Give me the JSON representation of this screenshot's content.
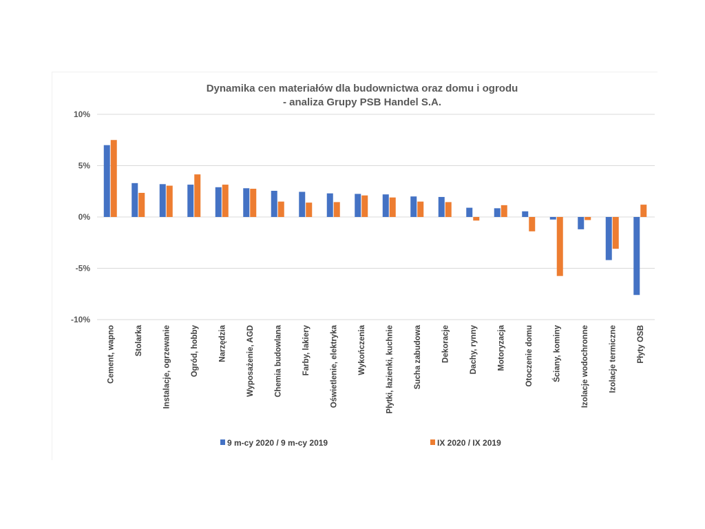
{
  "chart_data": {
    "type": "bar",
    "title": [
      "Dynamika cen materiałów dla budownictwa oraz domu i ogrodu",
      "- analiza Grupy PSB Handel S.A."
    ],
    "xlabel": "",
    "ylabel": "",
    "ylim": [
      -10,
      10
    ],
    "yticks": [
      10,
      5,
      0,
      -5,
      -10
    ],
    "ytick_labels": [
      "10%",
      "5%",
      "0%",
      "-5%",
      "-10%"
    ],
    "grid": true,
    "legend_position": "bottom",
    "categories": [
      "Cement, wapno",
      "Stolarka",
      "Instalacje, ogrzewanie",
      "Ogród, hobby",
      "Narzędzia",
      "Wyposażenie, AGD",
      "Chemia budowlana",
      "Farby, lakiery",
      "Oświetlenie, elektryka",
      "Wykończenia",
      "Płytki, łazienki, kuchnie",
      "Sucha zabudowa",
      "Dekoracje",
      "Dachy, rynny",
      "Motoryzacja",
      "Otoczenie domu",
      "Ściany, kominy",
      "Izolacje wodochronne",
      "Izolacje termiczne",
      "Płyty OSB"
    ],
    "series": [
      {
        "name": "9 m-cy 2020 / 9 m-cy 2019",
        "color": "#4472C4",
        "values": [
          7.0,
          3.3,
          3.2,
          3.15,
          2.9,
          2.8,
          2.55,
          2.45,
          2.3,
          2.25,
          2.2,
          2.0,
          1.95,
          0.9,
          0.85,
          0.55,
          -0.25,
          -1.2,
          -4.2,
          -7.6
        ]
      },
      {
        "name": "IX 2020 / IX 2019",
        "color": "#ED7D31",
        "values": [
          7.5,
          2.35,
          3.05,
          4.15,
          3.15,
          2.75,
          1.5,
          1.4,
          1.45,
          2.1,
          1.9,
          1.5,
          1.45,
          -0.35,
          1.15,
          -1.4,
          -5.75,
          -0.3,
          -3.1,
          1.2
        ]
      }
    ]
  }
}
